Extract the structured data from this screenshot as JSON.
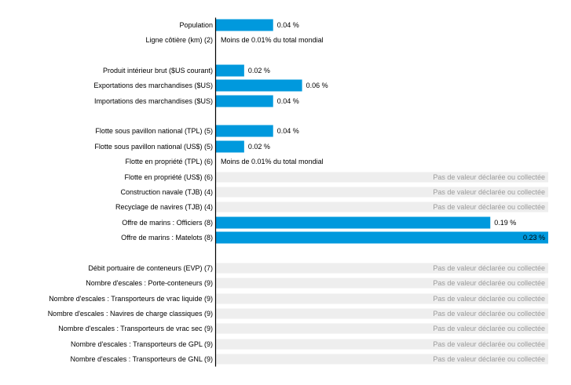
{
  "chart_data": {
    "type": "bar",
    "orientation": "horizontal",
    "unit": "%",
    "bar_color": "#0099dd",
    "na_background": "#eeeeee",
    "na_text_color": "#9a9a9a",
    "axis_color": "#000000",
    "xlim": [
      0,
      0.23
    ],
    "no_value_text": "Pas de valeur déclarée ou collectée",
    "groups": [
      {
        "rows": [
          {
            "label": "Population",
            "value": 0.04,
            "display": "0.04 %"
          },
          {
            "label": "Ligne côtière (km) (2)",
            "value": null,
            "display": "Moins de 0.01% du total mondial",
            "status": "lt"
          }
        ]
      },
      {
        "rows": [
          {
            "label": "Produit intérieur brut ($US courant)",
            "value": 0.02,
            "display": "0.02 %"
          },
          {
            "label": "Exportations des marchandises ($US)",
            "value": 0.06,
            "display": "0.06 %"
          },
          {
            "label": "Importations des marchandises ($US)",
            "value": 0.04,
            "display": "0.04 %"
          }
        ]
      },
      {
        "rows": [
          {
            "label": "Flotte sous pavillon national (TPL) (5)",
            "value": 0.04,
            "display": "0.04 %"
          },
          {
            "label": "Flotte sous pavillon national (US$) (5)",
            "value": 0.02,
            "display": "0.02 %"
          },
          {
            "label": "Flotte en propriété (TPL) (6)",
            "value": null,
            "display": "Moins de 0.01% du total mondial",
            "status": "lt"
          },
          {
            "label": "Flotte en propriété (US$) (6)",
            "value": null,
            "status": "na"
          },
          {
            "label": "Construction navale (TJB) (4)",
            "value": null,
            "status": "na"
          },
          {
            "label": "Recyclage de navires (TJB) (4)",
            "value": null,
            "status": "na"
          },
          {
            "label": "Offre de marins : Officiers (8)",
            "value": 0.19,
            "display": "0.19 %"
          },
          {
            "label": "Offre de marins : Matelots (8)",
            "value": 0.23,
            "display": "0.23 %"
          }
        ]
      },
      {
        "rows": [
          {
            "label": "Débit portuaire de conteneurs (EVP) (7)",
            "value": null,
            "status": "na"
          },
          {
            "label": "Nombre d'escales : Porte-conteneurs (9)",
            "value": null,
            "status": "na"
          },
          {
            "label": "Nombre d'escales : Transporteurs de vrac liquide (9)",
            "value": null,
            "status": "na"
          },
          {
            "label": "Nombre d'escales : Navires de charge classiques (9)",
            "value": null,
            "status": "na"
          },
          {
            "label": "Nombre d'escales : Transporteurs de vrac sec (9)",
            "value": null,
            "status": "na"
          },
          {
            "label": "Nombre d'escales : Transporteurs de GPL (9)",
            "value": null,
            "status": "na"
          },
          {
            "label": "Nombre d'escales : Transporteurs de GNL (9)",
            "value": null,
            "status": "na"
          }
        ]
      }
    ]
  }
}
